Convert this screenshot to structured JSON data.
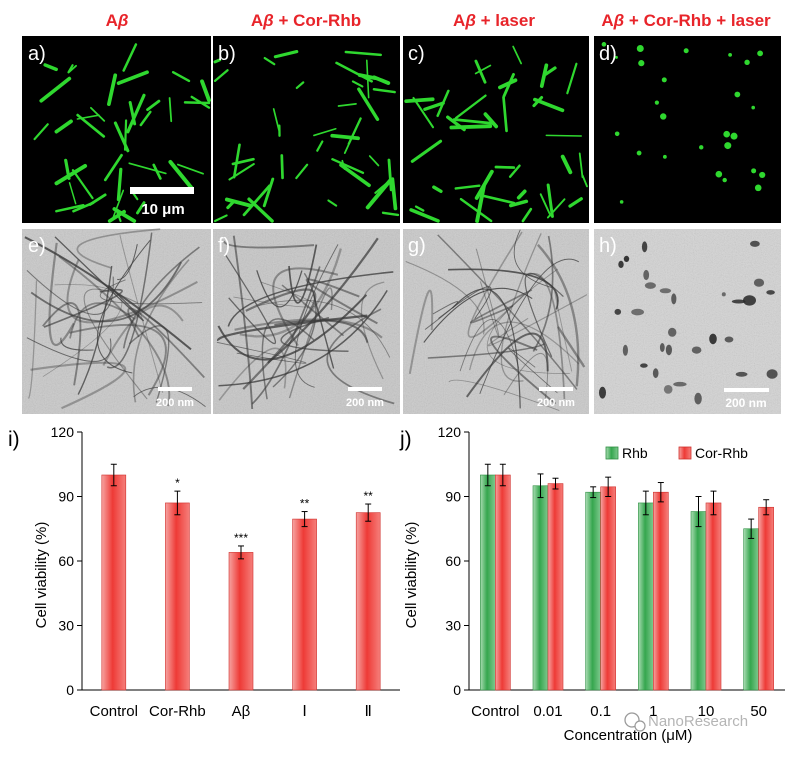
{
  "figure": {
    "row_titles": [
      {
        "base": "A",
        "beta": "β",
        "suffix": ""
      },
      {
        "base": "A",
        "beta": "β",
        "suffix": " + Cor-Rhb"
      },
      {
        "base": "A",
        "beta": "β",
        "suffix": " + laser"
      },
      {
        "base": "A",
        "beta": "β",
        "suffix": " + Cor-Rhb + laser"
      }
    ],
    "panel_labels": [
      "a)",
      "b)",
      "c)",
      "d)",
      "e)",
      "f)",
      "g)",
      "h)",
      "i)",
      "j)"
    ],
    "fluorescence_scalebar": "10 μm",
    "tem_scalebars": [
      "200 nm",
      "200 nm",
      "200 nm",
      "200 nm"
    ],
    "watermark": "NanoResearch",
    "colors": {
      "title_red": "#e8242a",
      "fluorescence_green": "#2fd82f",
      "bar_red": "#ee3a36",
      "bar_green": "#35a64e"
    }
  },
  "chart_data": [
    {
      "type": "bar",
      "panel": "i)",
      "categories": [
        "Control",
        "Cor-Rhb",
        "Aβ",
        "Ⅰ",
        "Ⅱ"
      ],
      "values": [
        100,
        87,
        64,
        79.5,
        82.5
      ],
      "errors": [
        5,
        5.5,
        3,
        3.5,
        4
      ],
      "significance": [
        "",
        "*",
        "***",
        "**",
        "**"
      ],
      "ylabel": "Cell viability (%)",
      "ylim": [
        0,
        120
      ],
      "yticks": [
        0,
        30,
        60,
        90,
        120
      ],
      "grid": false
    },
    {
      "type": "bar",
      "panel": "j)",
      "categories": [
        "Control",
        "0.01",
        "0.1",
        "1",
        "10",
        "50"
      ],
      "series": [
        {
          "name": "Rhb",
          "values": [
            100,
            95,
            92,
            87,
            83,
            75
          ],
          "errors": [
            5,
            5.5,
            2.5,
            5.5,
            7,
            4.5
          ]
        },
        {
          "name": "Cor-Rhb",
          "values": [
            100,
            96,
            94.5,
            92,
            87,
            85
          ],
          "errors": [
            5,
            2.5,
            4.5,
            4.5,
            5.5,
            3.5
          ]
        }
      ],
      "xlabel": "Concentration (μM)",
      "ylabel": "Cell viability (%)",
      "ylim": [
        0,
        120
      ],
      "yticks": [
        0,
        30,
        60,
        90,
        120
      ],
      "legend": "top-right",
      "grid": false
    }
  ]
}
